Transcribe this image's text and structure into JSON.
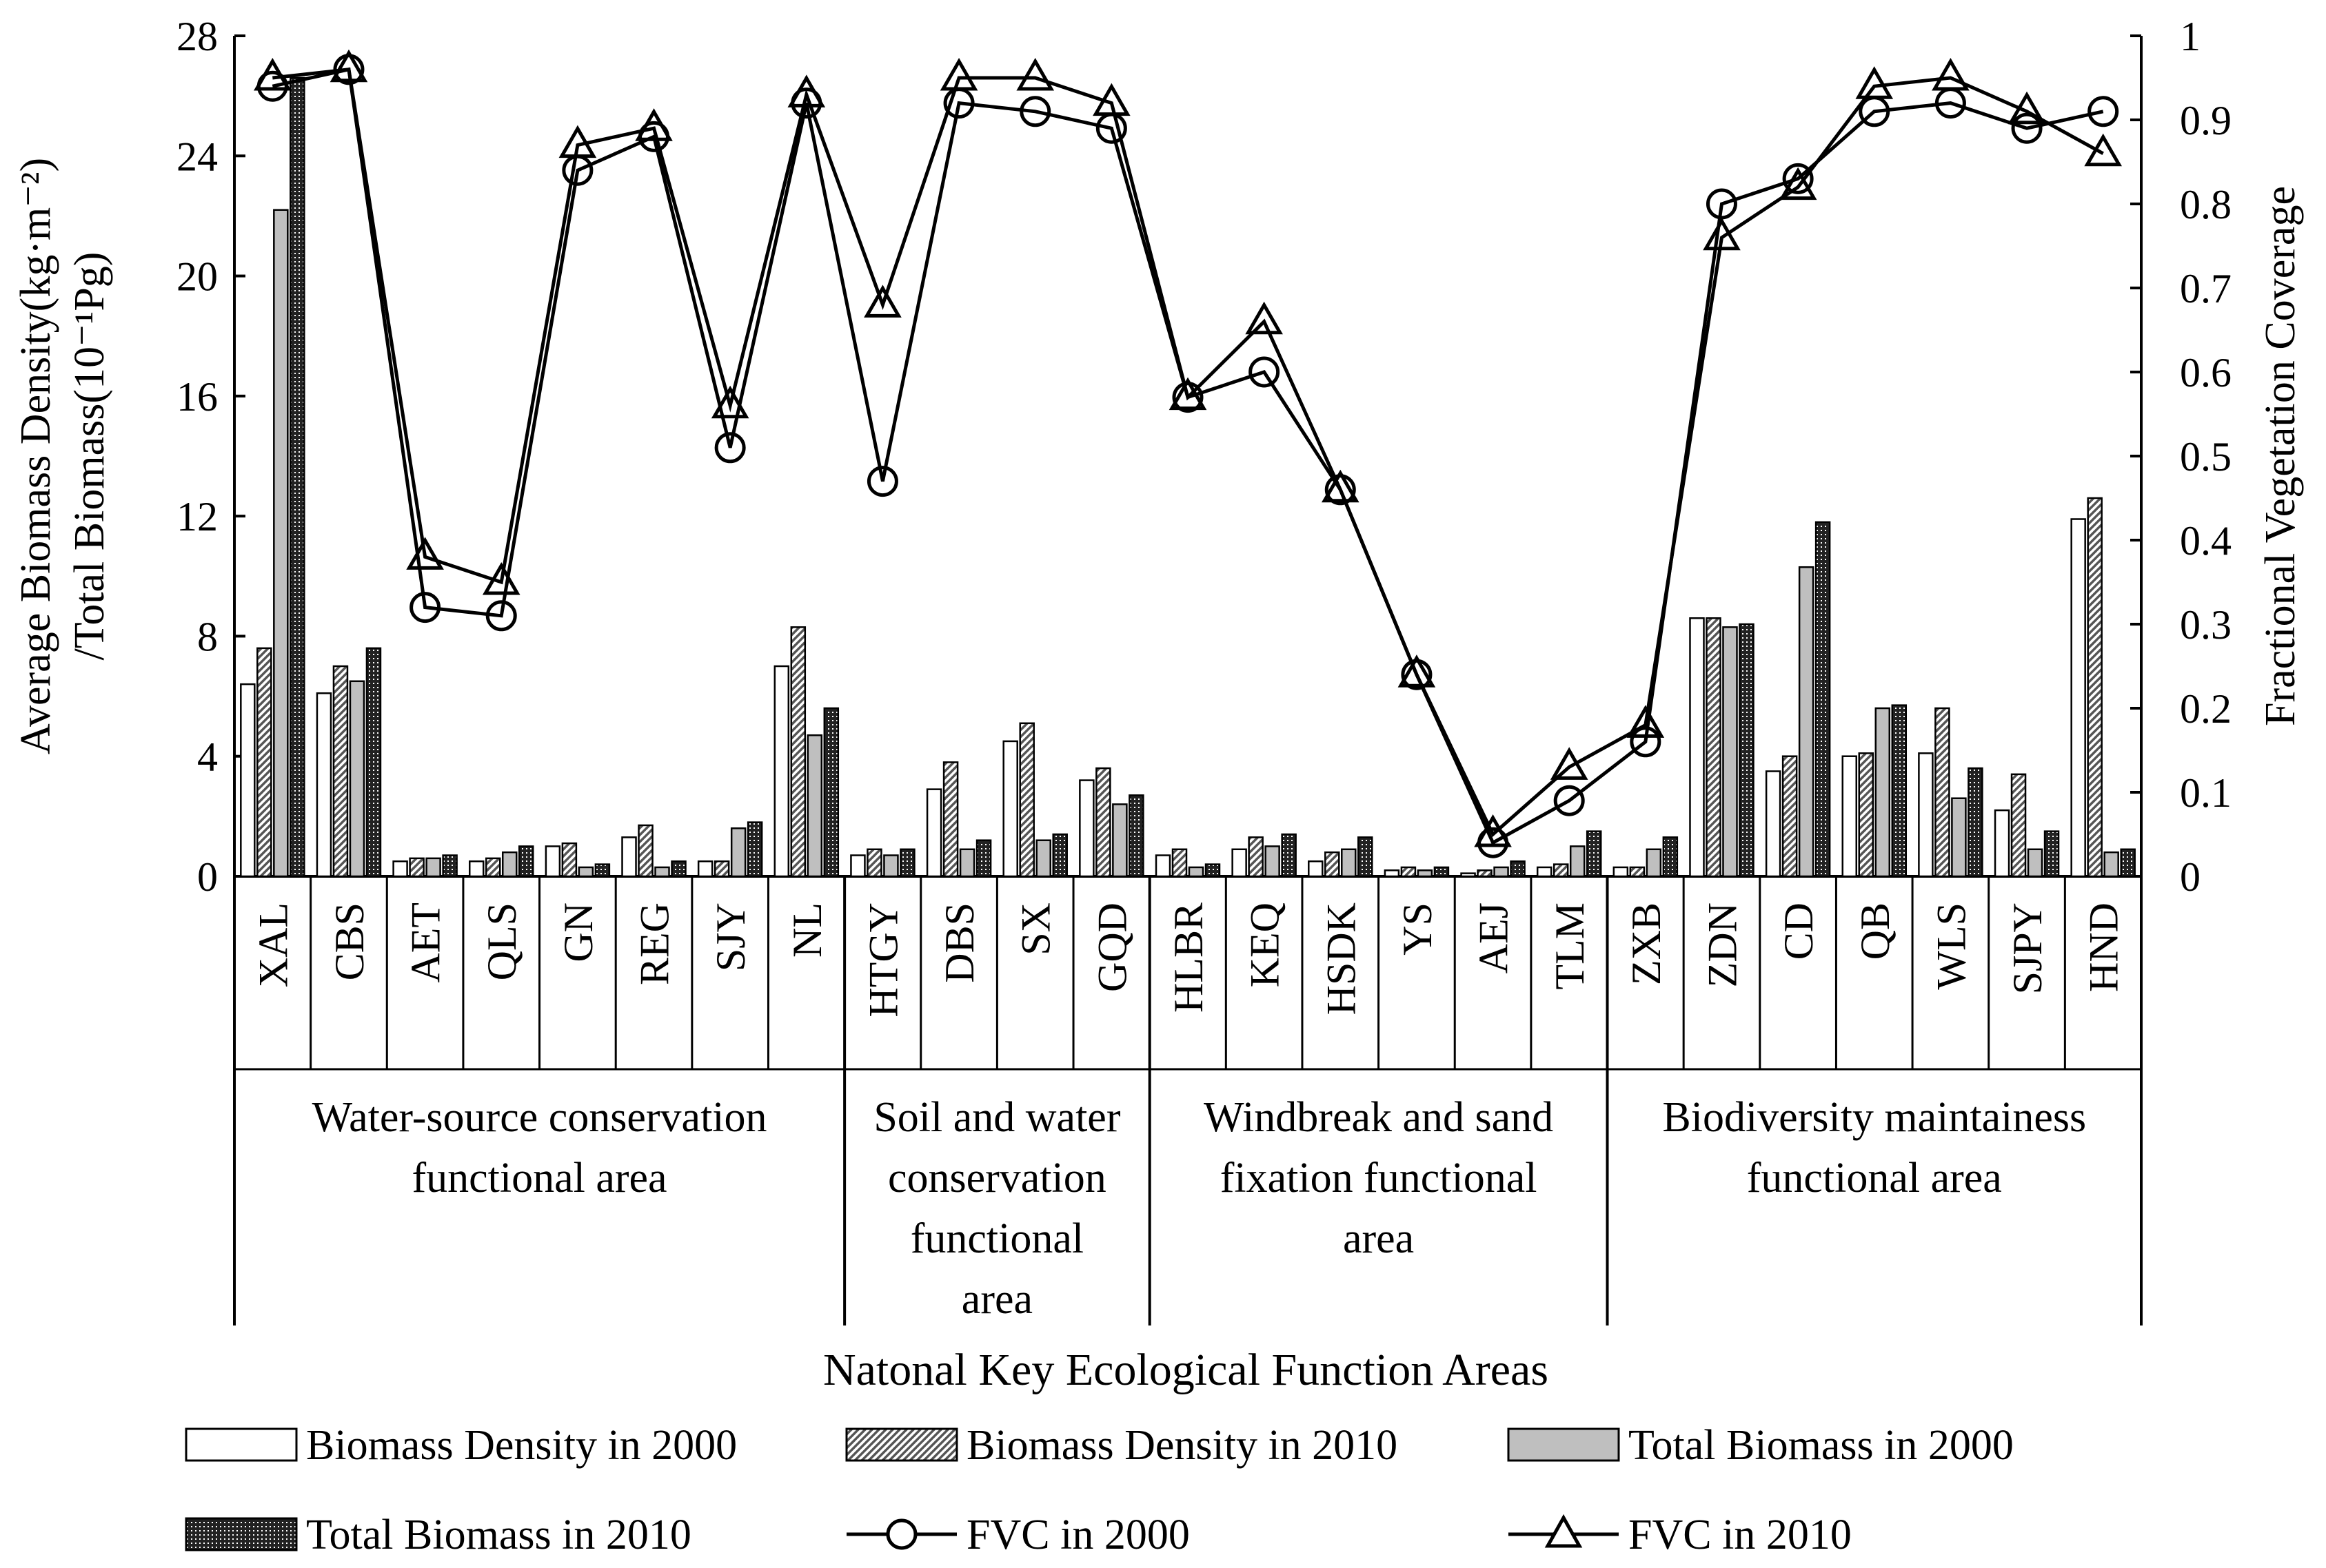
{
  "chart_data": {
    "type": "bar+line",
    "xlabel": "Natonal Key Ecological Function Areas",
    "ylabel_left_line1": "Average Biomass Density(kg·m⁻²)",
    "ylabel_left_line2": "/Total Biomass(10⁻¹Pg)",
    "ylabel_right": "Fractional Vegetation Coverage",
    "ylim_left": [
      0,
      28
    ],
    "yticks_left": [
      "0",
      "4",
      "8",
      "12",
      "16",
      "20",
      "24",
      "28"
    ],
    "ylim_right": [
      0,
      1
    ],
    "yticks_right": [
      "0",
      "0.1",
      "0.2",
      "0.3",
      "0.4",
      "0.5",
      "0.6",
      "0.7",
      "0.8",
      "0.9",
      "1"
    ],
    "categories": [
      "XAL",
      "CBS",
      "AET",
      "QLS",
      "GN",
      "REG",
      "SJY",
      "NL",
      "HTGY",
      "DBS",
      "SX",
      "GQD",
      "HLBR",
      "KEQ",
      "HSDK",
      "YS",
      "AEJ",
      "TLM",
      "ZXB",
      "ZDN",
      "CD",
      "QB",
      "WLS",
      "SJPY",
      "HND"
    ],
    "groups": [
      {
        "lines": [
          "Water-source conservation",
          "functional area"
        ],
        "count": 8
      },
      {
        "lines": [
          "Soil and water",
          "conservation",
          "functional",
          "area"
        ],
        "count": 4
      },
      {
        "lines": [
          "Windbreak and sand",
          "fixation functional",
          "area"
        ],
        "count": 6
      },
      {
        "lines": [
          "Biodiversity maintainess",
          "functional area"
        ],
        "count": 7
      }
    ],
    "bar_series": [
      {
        "name": "Biomass Density in 2000",
        "fill": "#ffffff",
        "pattern": "none",
        "values": [
          6.4,
          6.1,
          0.5,
          0.5,
          1.0,
          1.3,
          0.5,
          7.0,
          0.7,
          2.9,
          4.5,
          3.2,
          0.7,
          0.9,
          0.5,
          0.2,
          0.1,
          0.3,
          0.3,
          8.6,
          3.5,
          4.0,
          4.1,
          2.2,
          11.9
        ]
      },
      {
        "name": "Biomass Density in 2010",
        "fill": "#ffffff",
        "pattern": "diagonal",
        "values": [
          7.6,
          7.0,
          0.6,
          0.6,
          1.1,
          1.7,
          0.5,
          8.3,
          0.9,
          3.8,
          5.1,
          3.6,
          0.9,
          1.3,
          0.8,
          0.3,
          0.2,
          0.4,
          0.3,
          8.6,
          4.0,
          4.1,
          5.6,
          3.4,
          12.6
        ]
      },
      {
        "name": "Total Biomass in 2000",
        "fill": "#bfbfbf",
        "pattern": "none",
        "values": [
          22.2,
          6.5,
          0.6,
          0.8,
          0.3,
          0.3,
          1.6,
          4.7,
          0.7,
          0.9,
          1.2,
          2.4,
          0.3,
          1.0,
          0.9,
          0.2,
          0.3,
          1.0,
          0.9,
          8.3,
          10.3,
          5.6,
          2.6,
          0.9,
          0.8
        ]
      },
      {
        "name": "Total Biomass in 2010",
        "fill": "#333333",
        "pattern": "dots",
        "values": [
          26.6,
          7.6,
          0.7,
          1.0,
          0.4,
          0.5,
          1.8,
          5.6,
          0.9,
          1.2,
          1.4,
          2.7,
          0.4,
          1.4,
          1.3,
          0.3,
          0.5,
          1.5,
          1.3,
          8.4,
          11.8,
          5.7,
          3.6,
          1.5,
          0.9
        ]
      }
    ],
    "line_series": [
      {
        "name": "FVC in 2000",
        "marker": "circle",
        "values": [
          0.94,
          0.96,
          0.32,
          0.31,
          0.84,
          0.88,
          0.51,
          0.92,
          0.47,
          0.92,
          0.91,
          0.89,
          0.57,
          0.6,
          0.46,
          0.24,
          0.04,
          0.09,
          0.16,
          0.8,
          0.83,
          0.91,
          0.92,
          0.89,
          0.91
        ]
      },
      {
        "name": "FVC in 2010",
        "marker": "triangle",
        "values": [
          0.95,
          0.96,
          0.38,
          0.35,
          0.87,
          0.89,
          0.56,
          0.93,
          0.68,
          0.95,
          0.95,
          0.92,
          0.57,
          0.66,
          0.46,
          0.24,
          0.05,
          0.13,
          0.18,
          0.76,
          0.82,
          0.94,
          0.95,
          0.91,
          0.86
        ]
      }
    ],
    "legend": {
      "row1": [
        "Biomass Density in 2000",
        "Biomass Density in 2010",
        "Total Biomass in 2000"
      ],
      "row2": [
        "Total Biomass in 2010",
        "FVC in 2000",
        "FVC in 2010"
      ]
    }
  }
}
